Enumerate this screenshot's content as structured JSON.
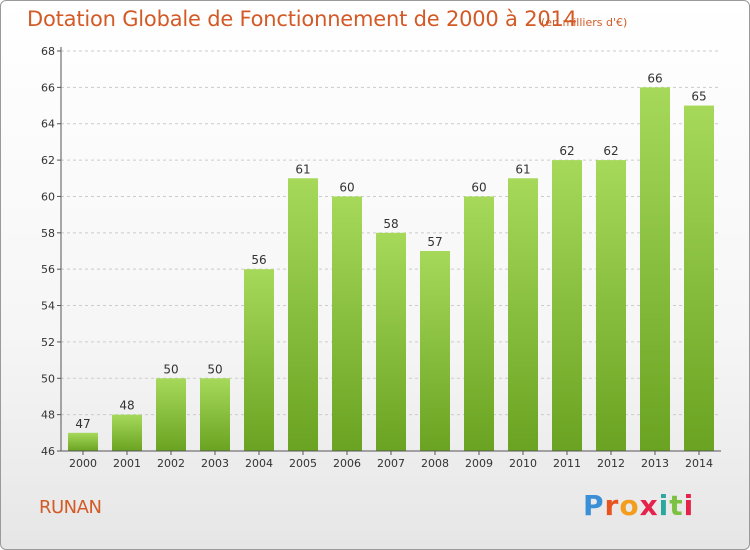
{
  "header": {
    "title": "Dotation Globale de Fonctionnement de 2000 à 2014",
    "unit_note": "(en milliers d'€)"
  },
  "footer": {
    "commune": "RUNAN",
    "logo_text": "Proxiti",
    "logo_colors": [
      "#3a8fd6",
      "#e8541f",
      "#f39c1e",
      "#e6224a",
      "#2aa8a0",
      "#7cc142",
      "#e6224a"
    ]
  },
  "colors": {
    "bar_top": "#a6d95a",
    "bar_bottom": "#6aa321",
    "axis": "#555555",
    "grid": "#cccccc",
    "title": "#d35a26"
  },
  "chart_data": {
    "type": "bar",
    "title": "Dotation Globale de Fonctionnement de 2000 à 2014",
    "subtitle": "(en milliers d'€)",
    "xlabel": "",
    "ylabel": "",
    "categories": [
      "2000",
      "2001",
      "2002",
      "2003",
      "2004",
      "2005",
      "2006",
      "2007",
      "2008",
      "2009",
      "2010",
      "2011",
      "2012",
      "2013",
      "2014"
    ],
    "values": [
      47,
      48,
      50,
      50,
      56,
      61,
      60,
      58,
      57,
      60,
      61,
      62,
      62,
      66,
      65
    ],
    "ylim": [
      46,
      68
    ],
    "yticks": [
      46,
      48,
      50,
      52,
      54,
      56,
      58,
      60,
      62,
      64,
      66,
      68
    ],
    "grid": true,
    "data_labels": true
  }
}
